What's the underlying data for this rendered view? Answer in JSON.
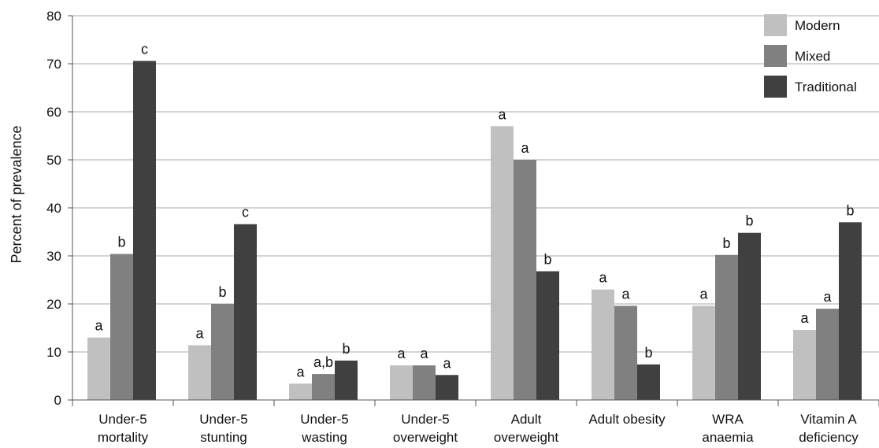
{
  "chart_data": {
    "type": "bar",
    "ylabel": "Percent of prevalence",
    "ylim": [
      0,
      80
    ],
    "yticks": [
      0,
      10,
      20,
      30,
      40,
      50,
      60,
      70,
      80
    ],
    "grid": true,
    "legend_position": "top-right",
    "categories": [
      [
        "Under-5",
        "mortality"
      ],
      [
        "Under-5",
        "stunting"
      ],
      [
        "Under-5",
        "wasting"
      ],
      [
        "Under-5",
        "overweight"
      ],
      [
        "Adult",
        "overweight"
      ],
      [
        "Adult obesity"
      ],
      [
        "WRA",
        "anaemia"
      ],
      [
        "Vitamin A",
        "deficiency"
      ]
    ],
    "series": [
      {
        "name": "Modern",
        "color": "#c0c0c0",
        "values": [
          13,
          11.4,
          3.4,
          7.2,
          57,
          23,
          19.6,
          14.6
        ],
        "letters": [
          "a",
          "a",
          "a",
          "a",
          "a",
          "a",
          "a",
          "a"
        ]
      },
      {
        "name": "Mixed",
        "color": "#808080",
        "values": [
          30.4,
          20,
          5.4,
          7.2,
          50,
          19.6,
          30.2,
          19
        ],
        "letters": [
          "b",
          "b",
          "a,b",
          "a",
          "a",
          "a",
          "b",
          "a"
        ]
      },
      {
        "name": "Traditional",
        "color": "#404040",
        "values": [
          70.6,
          36.6,
          8.2,
          5.2,
          26.8,
          7.4,
          34.8,
          37
        ],
        "letters": [
          "c",
          "c",
          "b",
          "a",
          "b",
          "b",
          "b",
          "b"
        ]
      }
    ]
  }
}
